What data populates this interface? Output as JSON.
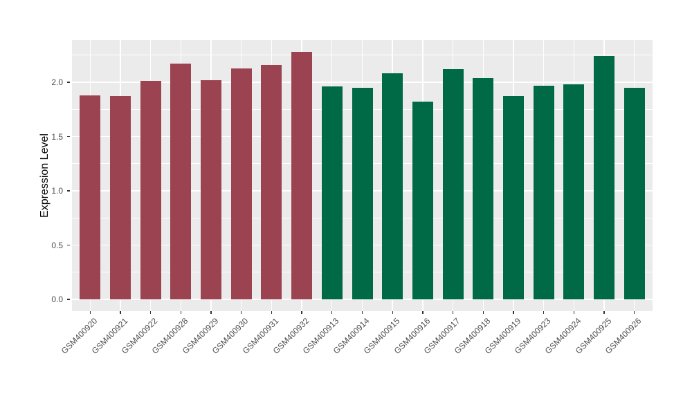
{
  "chart_data": {
    "type": "bar",
    "title": "",
    "xlabel": "",
    "ylabel": "Expression Level",
    "categories": [
      "GSM400920",
      "GSM400921",
      "GSM400922",
      "GSM400928",
      "GSM400929",
      "GSM400930",
      "GSM400931",
      "GSM400932",
      "GSM400913",
      "GSM400914",
      "GSM400915",
      "GSM400916",
      "GSM400917",
      "GSM400918",
      "GSM400919",
      "GSM400923",
      "GSM400924",
      "GSM400925",
      "GSM400926"
    ],
    "values": [
      1.88,
      1.87,
      2.01,
      2.17,
      2.02,
      2.13,
      2.16,
      2.28,
      1.96,
      1.95,
      2.08,
      1.82,
      2.12,
      2.04,
      1.87,
      1.97,
      1.98,
      2.24,
      1.95
    ],
    "bar_colors": [
      "#9C4351",
      "#9C4351",
      "#9C4351",
      "#9C4351",
      "#9C4351",
      "#9C4351",
      "#9C4351",
      "#9C4351",
      "#006946",
      "#006946",
      "#006946",
      "#006946",
      "#006946",
      "#006946",
      "#006946",
      "#006946",
      "#006946",
      "#006946",
      "#006946"
    ],
    "y_tick_labels": [
      "0.0",
      "0.5",
      "1.0",
      "1.5",
      "2.0"
    ],
    "y_ticks": [
      0,
      0.5,
      1,
      1.5,
      2
    ],
    "y_minor_gridlines": [
      0.25,
      0.75,
      1.25,
      1.75,
      2.25
    ],
    "ylim": [
      -0.11,
      2.39
    ],
    "legend": "none",
    "grid": "major and minor horizontal white lines, vertical white line at each category center, on gray panel",
    "style": {
      "panel_bg": "#EBEBEB",
      "grid_color": "#FFFFFF",
      "axis_text_color": "#4D4D4D",
      "tick_mark_color": "#333333",
      "axis_title_color": "#000000",
      "outer_bg": "#FFFFFF"
    }
  }
}
